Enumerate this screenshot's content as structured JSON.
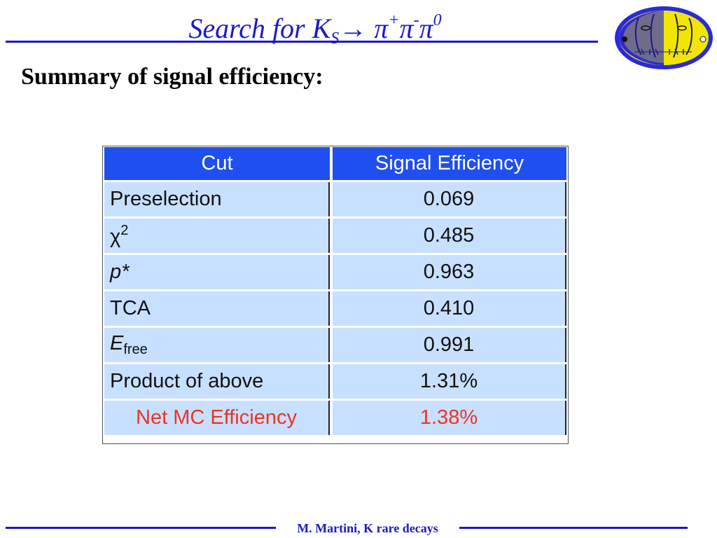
{
  "slide": {
    "title_prefix": "Search for K",
    "title_sub": "S",
    "title_arrow": "→",
    "pi": "π",
    "plus": "+",
    "minus": "-",
    "zero": "0",
    "subtitle": "Summary of signal efficiency:",
    "footer": "M. Martini, K rare decays",
    "logo_icon": "kloe-logo-icon"
  },
  "table": {
    "headers": [
      "Cut",
      "Signal Efficiency"
    ],
    "rows": [
      {
        "cut": "Preselection",
        "value": "0.069"
      },
      {
        "cut_base": "χ",
        "cut_sup": "2",
        "value": "0.485"
      },
      {
        "cut": "p*",
        "value": "0.963"
      },
      {
        "cut": "TCA",
        "value": "0.410"
      },
      {
        "cut_base": "E",
        "cut_sub": "free",
        "value": "0.991"
      },
      {
        "cut": "Product of above",
        "value": "1.31%"
      },
      {
        "cut": "Net MC Efficiency",
        "value": "1.38%"
      }
    ]
  },
  "colors": {
    "title_blue": "#1a1ac8",
    "header_blue": "#1f4ff0",
    "cell_light_blue": "#c8e0ff",
    "highlight_red": "#ee3322",
    "logo_yellow": "#f2e600",
    "logo_blue": "#2a2ad8"
  }
}
